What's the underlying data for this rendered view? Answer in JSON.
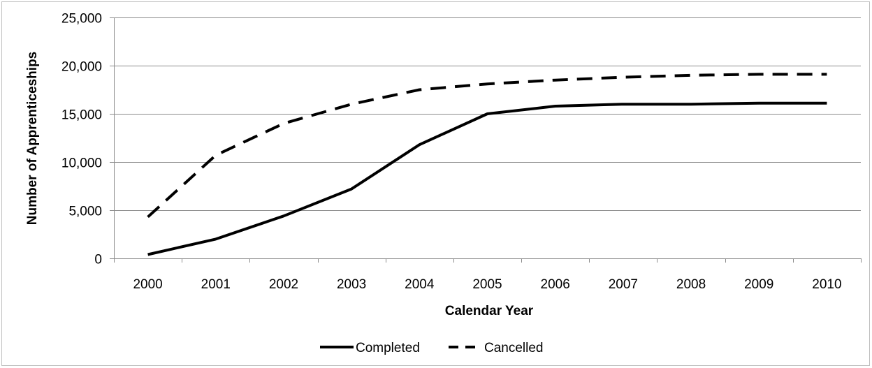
{
  "chart_data": {
    "type": "line",
    "title": "",
    "xlabel": "Calendar Year",
    "ylabel": "Number of Apprenticeships",
    "categories": [
      "2000",
      "2001",
      "2002",
      "2003",
      "2004",
      "2005",
      "2006",
      "2007",
      "2008",
      "2009",
      "2010"
    ],
    "ylim": [
      0,
      25000
    ],
    "yticks": [
      0,
      5000,
      10000,
      15000,
      20000,
      25000
    ],
    "ytick_labels": [
      "0",
      "5,000",
      "10,000",
      "15,000",
      "20,000",
      "25,000"
    ],
    "grid": true,
    "legend_position": "bottom",
    "series": [
      {
        "name": "Completed",
        "style": "solid",
        "values": [
          400,
          2000,
          4400,
          7200,
          11800,
          15000,
          15800,
          16000,
          16000,
          16100,
          16100
        ]
      },
      {
        "name": "Cancelled",
        "style": "dashed",
        "values": [
          4300,
          10700,
          14000,
          16000,
          17500,
          18100,
          18500,
          18800,
          19000,
          19100,
          19100
        ]
      }
    ],
    "colors": {
      "line": "#000000",
      "grid": "#8c8c8c",
      "axis": "#8c8c8c"
    }
  }
}
